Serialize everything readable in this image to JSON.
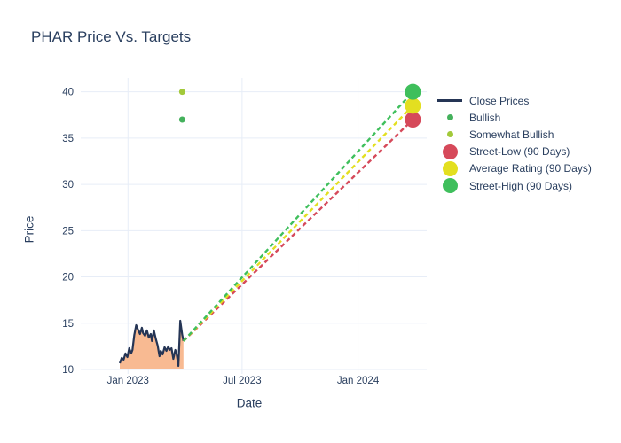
{
  "page": {
    "title": "PHAR Price Vs. Targets"
  },
  "chart_data": {
    "type": "line",
    "title": "PHAR Price Vs. Targets",
    "xlabel": "Date",
    "ylabel": "Price",
    "x_range": [
      "2022-10-18",
      "2024-04-19"
    ],
    "y_range": [
      10,
      41.5
    ],
    "x_ticks": [
      {
        "label": "Jan 2023",
        "date": "2023-01-01"
      },
      {
        "label": "Jul 2023",
        "date": "2023-07-01"
      },
      {
        "label": "Jan 2024",
        "date": "2024-01-01"
      }
    ],
    "y_ticks": [
      10,
      15,
      20,
      25,
      30,
      35,
      40
    ],
    "grid": true,
    "legend_position": "right",
    "colors": {
      "grid": "#e7edf7",
      "text": "#2a3f5f",
      "background": "#ffffff"
    },
    "close_prices": {
      "name": "Close Prices",
      "color": "#253555",
      "fill_color": "#f8ba92",
      "points": [
        [
          "2022-12-19",
          10.67
        ],
        [
          "2022-12-22",
          11.25
        ],
        [
          "2022-12-25",
          11.05
        ],
        [
          "2022-12-28",
          11.73
        ],
        [
          "2022-12-31",
          11.34
        ],
        [
          "2023-01-03",
          12.3
        ],
        [
          "2023-01-06",
          11.73
        ],
        [
          "2023-01-08",
          12.11
        ],
        [
          "2023-01-11",
          13.74
        ],
        [
          "2023-01-14",
          14.79
        ],
        [
          "2023-01-17",
          14.31
        ],
        [
          "2023-01-20",
          13.83
        ],
        [
          "2023-01-23",
          14.51
        ],
        [
          "2023-01-25",
          13.93
        ],
        [
          "2023-01-28",
          13.64
        ],
        [
          "2023-01-31",
          14.22
        ],
        [
          "2023-02-03",
          13.45
        ],
        [
          "2023-02-06",
          13.83
        ],
        [
          "2023-02-08",
          13.07
        ],
        [
          "2023-02-11",
          14.22
        ],
        [
          "2023-02-14",
          13.36
        ],
        [
          "2023-02-17",
          12.59
        ],
        [
          "2023-02-20",
          11.44
        ],
        [
          "2023-02-22",
          12.01
        ],
        [
          "2023-02-25",
          11.63
        ],
        [
          "2023-02-28",
          12.4
        ],
        [
          "2023-03-03",
          12.01
        ],
        [
          "2023-03-06",
          12.49
        ],
        [
          "2023-03-08",
          12.11
        ],
        [
          "2023-03-11",
          12.3
        ],
        [
          "2023-03-14",
          11.15
        ],
        [
          "2023-03-17",
          12.11
        ],
        [
          "2023-03-19",
          11.73
        ],
        [
          "2023-03-22",
          10.38
        ],
        [
          "2023-03-25",
          15.27
        ],
        [
          "2023-03-28",
          13.74
        ],
        [
          "2023-03-30",
          13.07
        ]
      ]
    },
    "ratings": [
      {
        "name": "Bullish",
        "color": "#44b15c",
        "date": "2023-03-28",
        "price": 37
      },
      {
        "name": "Somewhat Bullish",
        "color": "#a2c93a",
        "date": "2023-03-28",
        "price": 40
      }
    ],
    "projection_start": {
      "date": "2023-03-30",
      "price": 13.07
    },
    "targets": [
      {
        "name": "Street-Low (90 Days)",
        "color": "#d6495a",
        "date": "2024-03-28",
        "price": 37
      },
      {
        "name": "Average Rating (90 Days)",
        "color": "#e3df20",
        "date": "2024-03-28",
        "price": 38.5
      },
      {
        "name": "Street-High (90 Days)",
        "color": "#3fbf5c",
        "date": "2024-03-28",
        "price": 40
      }
    ],
    "legend": [
      {
        "label": "Close Prices",
        "marker": "line",
        "color": "#253555"
      },
      {
        "label": "Bullish",
        "marker": "dot",
        "color": "#44b15c"
      },
      {
        "label": "Somewhat Bullish",
        "marker": "dot",
        "color": "#a2c93a"
      },
      {
        "label": "Street-Low (90 Days)",
        "marker": "bubble",
        "color": "#d6495a"
      },
      {
        "label": "Average Rating (90 Days)",
        "marker": "bubble",
        "color": "#e3df20"
      },
      {
        "label": "Street-High (90 Days)",
        "marker": "bubble",
        "color": "#3fbf5c"
      }
    ]
  }
}
